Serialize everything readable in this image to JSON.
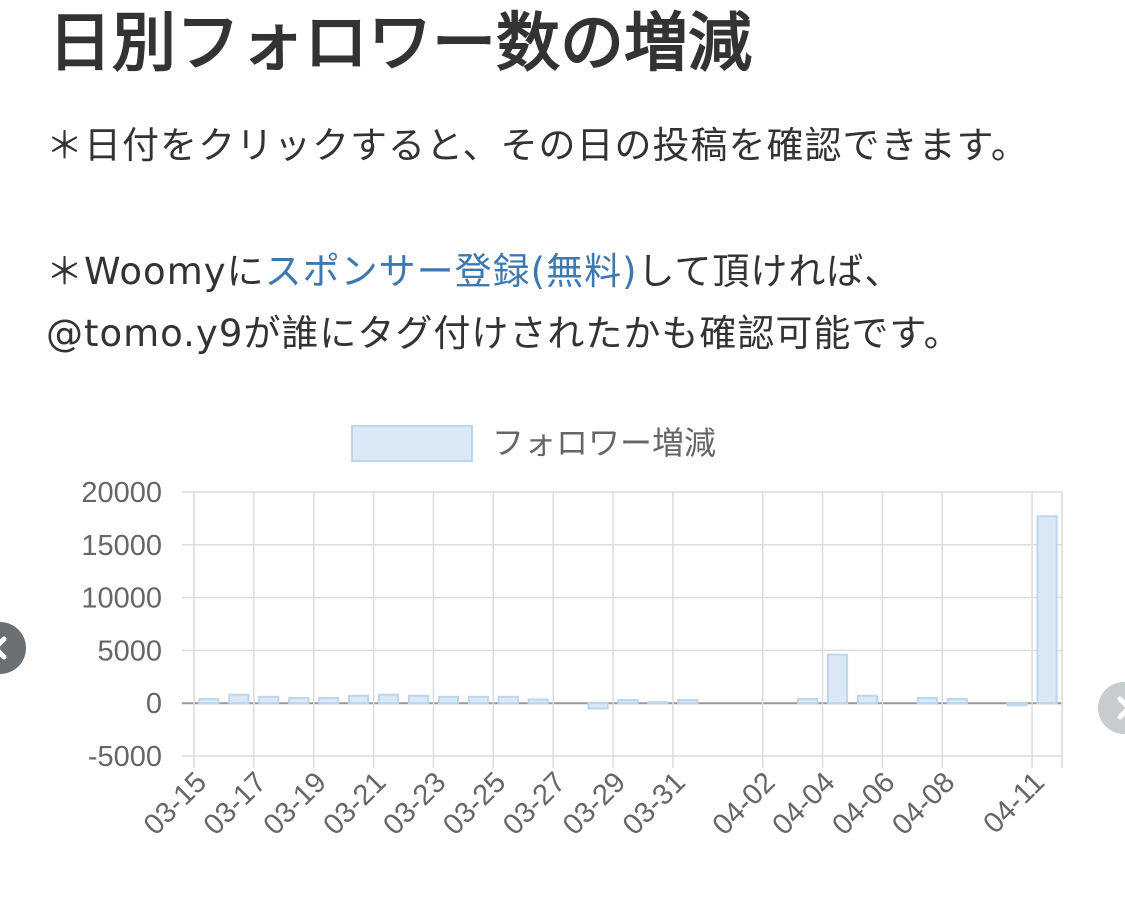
{
  "header": {
    "title": "日別フォロワー数の増減"
  },
  "notes": {
    "note1": "＊日付をクリックすると、その日の投稿を確認できます。",
    "note2_prefix": "＊Woomyに",
    "note2_link": "スポンサー登録(無料)",
    "note2_suffix": "して頂ければ、@tomo.y9が誰にタグ付けされたかも確認可能です。"
  },
  "nav": {
    "prev_icon": "chevron-left-icon",
    "next_icon": "chevron-right-icon"
  },
  "colors": {
    "bar_fill": "#dbe9f7",
    "bar_stroke": "#bcd6ef",
    "grid": "#dcdcdc",
    "zero_line": "#999999",
    "prev_arrow": "#6b7074",
    "next_arrow": "#c9cccf",
    "link": "#3d78b0"
  },
  "chart_data": {
    "type": "bar",
    "legend": [
      "フォロワー増減"
    ],
    "legend_position": "top",
    "grid": true,
    "ylim": [
      -5000,
      20000
    ],
    "yticks": [
      20000,
      15000,
      10000,
      5000,
      0,
      -5000
    ],
    "tick_labels": [
      "03-15",
      "03-17",
      "03-19",
      "03-21",
      "03-23",
      "03-25",
      "03-27",
      "03-29",
      "03-31",
      "04-02",
      "04-04",
      "04-06",
      "04-08",
      "04-11"
    ],
    "series": [
      {
        "name": "フォロワー増減",
        "points": [
          {
            "x": "03-15",
            "y": 400
          },
          {
            "x": "03-16",
            "y": 800
          },
          {
            "x": "03-17",
            "y": 600
          },
          {
            "x": "03-18",
            "y": 500
          },
          {
            "x": "03-19",
            "y": 500
          },
          {
            "x": "03-20",
            "y": 700
          },
          {
            "x": "03-21",
            "y": 800
          },
          {
            "x": "03-22",
            "y": 700
          },
          {
            "x": "03-23",
            "y": 600
          },
          {
            "x": "03-24",
            "y": 600
          },
          {
            "x": "03-25",
            "y": 600
          },
          {
            "x": "03-26",
            "y": 350
          },
          {
            "x": "03-28",
            "y": -500
          },
          {
            "x": "03-29",
            "y": 300
          },
          {
            "x": "03-30",
            "y": 100
          },
          {
            "x": "03-31",
            "y": 300
          },
          {
            "x": "04-03",
            "y": 400
          },
          {
            "x": "04-04",
            "y": 4600
          },
          {
            "x": "04-05",
            "y": 700
          },
          {
            "x": "04-07",
            "y": 500
          },
          {
            "x": "04-08",
            "y": 400
          },
          {
            "x": "04-10",
            "y": -200
          },
          {
            "x": "04-11",
            "y": 17700
          }
        ]
      }
    ]
  }
}
